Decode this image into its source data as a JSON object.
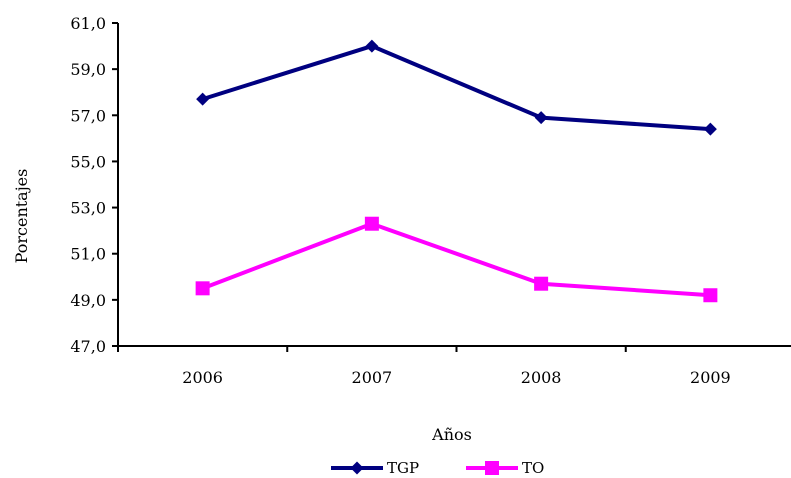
{
  "chart_data": {
    "type": "line",
    "title": "",
    "xlabel": "Años",
    "ylabel": "Porcentajes",
    "categories": [
      "2006",
      "2007",
      "2008",
      "2009"
    ],
    "ylim": [
      47.0,
      61.0
    ],
    "ytick_step": 2.0,
    "ytick_labels": [
      "47,0",
      "49,0",
      "51,0",
      "53,0",
      "55,0",
      "57,0",
      "59,0",
      "61,0"
    ],
    "grid": false,
    "legend_position": "bottom-center",
    "series": [
      {
        "name": "TGP",
        "values": [
          57.7,
          60.0,
          56.9,
          56.4
        ],
        "color": "#000080",
        "marker": "diamond"
      },
      {
        "name": "TO",
        "values": [
          49.5,
          52.3,
          49.7,
          49.2
        ],
        "color": "#ff00ff",
        "marker": "square"
      }
    ]
  }
}
